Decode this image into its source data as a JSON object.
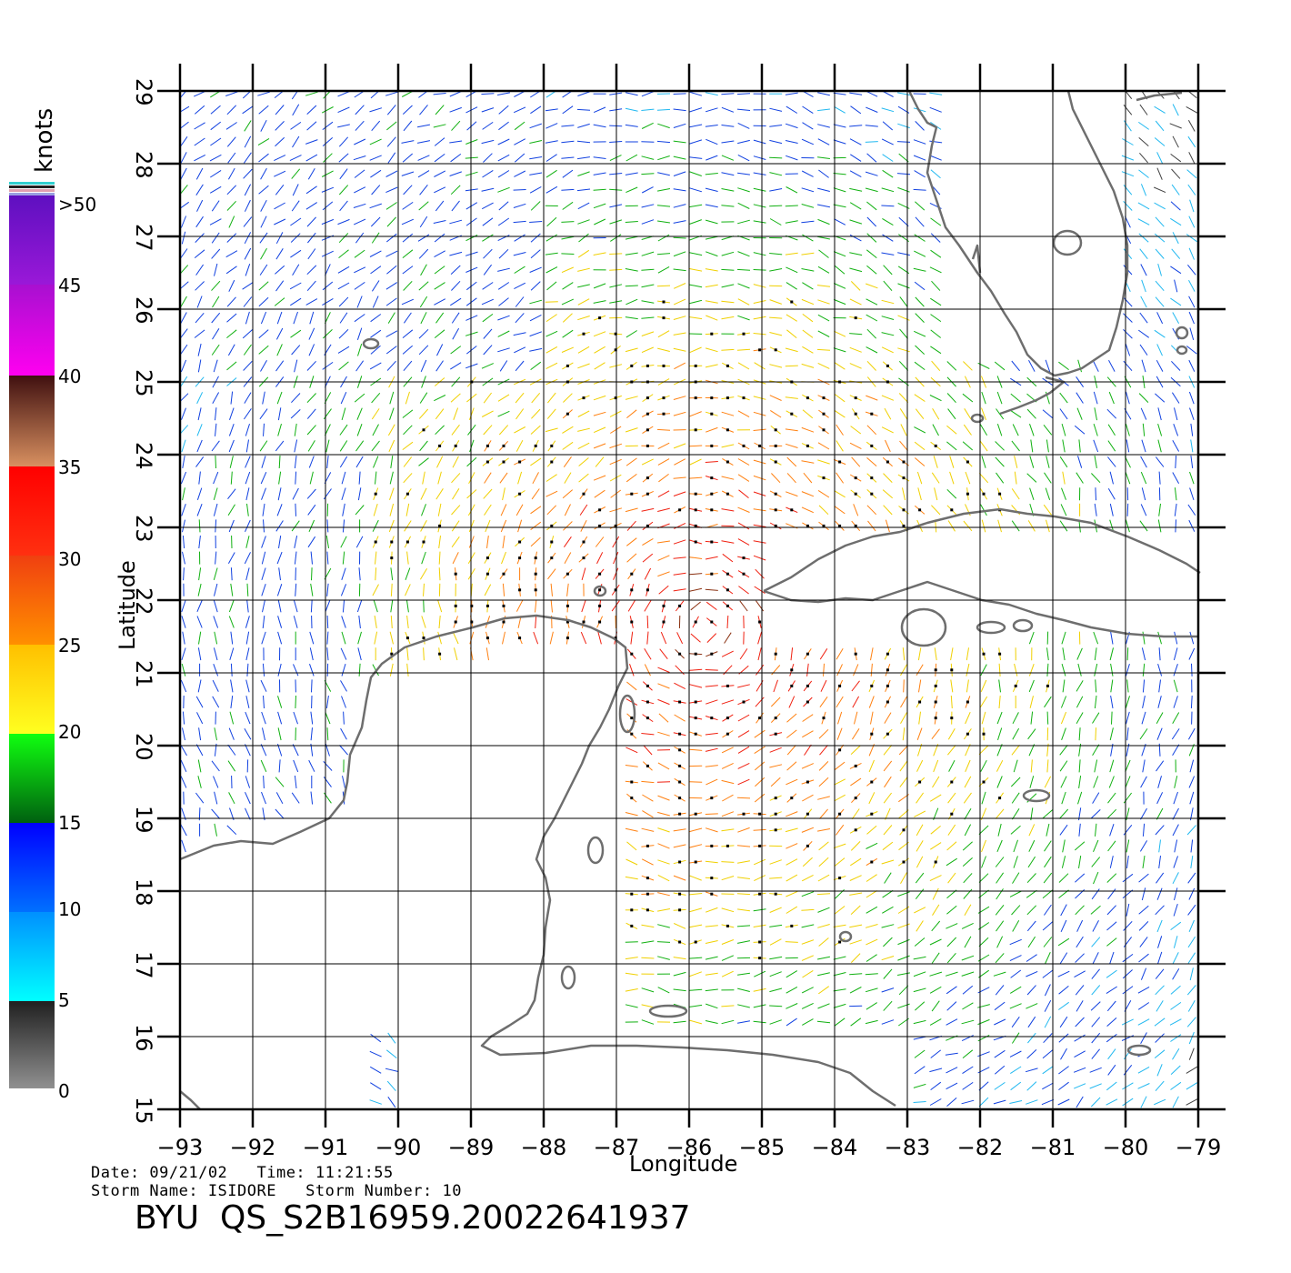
{
  "map": {
    "lon_range": [
      -93,
      -79
    ],
    "lat_range": [
      15,
      29
    ],
    "lon_ticks": [
      "−93",
      "−92",
      "−91",
      "−90",
      "−89",
      "−88",
      "−87",
      "−86",
      "−85",
      "−84",
      "−83",
      "−82",
      "−81",
      "−80",
      "−79"
    ],
    "lat_ticks": [
      "15",
      "16",
      "17",
      "18",
      "19",
      "20",
      "21",
      "22",
      "23",
      "24",
      "25",
      "26",
      "27",
      "28",
      "29"
    ],
    "xlabel": "Longitude",
    "ylabel": "Latitude",
    "coast_color": "#6e6e6e",
    "grid_color": "#000000"
  },
  "colorbar": {
    "unit": "knots",
    "labels": [
      ">50",
      "45",
      "40",
      "35",
      "30",
      "25",
      "20",
      "15",
      "10",
      "5",
      "0"
    ]
  },
  "info": {
    "date_line": "Date: 09/21/02   Time: 11:21:55",
    "storm_line": "Storm Name: ISIDORE   Storm Number: 10",
    "file_id": "BYU  QS_S2B16959.20022641937"
  }
}
